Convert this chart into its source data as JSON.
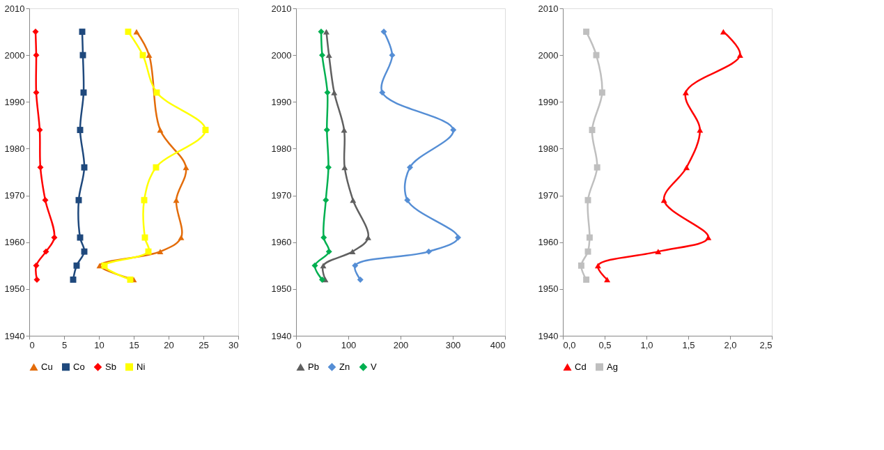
{
  "chart_data": [
    {
      "type": "line",
      "xlim": [
        0,
        30
      ],
      "xticks": [
        0,
        5,
        10,
        15,
        20,
        25,
        30
      ],
      "ylim": [
        1940,
        2010
      ],
      "yticks": [
        1940,
        1950,
        1960,
        1970,
        1980,
        1990,
        2000,
        2010
      ],
      "grid": false,
      "legend": "bottom",
      "series": [
        {
          "name": "Cu",
          "color": "#e36c0a",
          "marker": "triangle",
          "x": [
            15.4,
            17.2,
            null,
            18.8,
            22.5,
            21.1,
            21.8,
            18.8,
            10.1,
            15.0
          ],
          "values": [
            2005,
            2000,
            null,
            1984,
            1976,
            1969,
            1961,
            1958,
            1955,
            1952
          ]
        },
        {
          "name": "Co",
          "color": "#1f497d",
          "marker": "square",
          "x": [
            7.6,
            7.7,
            7.8,
            7.3,
            7.9,
            7.1,
            7.3,
            7.9,
            6.8,
            6.3
          ],
          "values": [
            2005,
            2000,
            1992,
            1984,
            1976,
            1969,
            1961,
            1958,
            1955,
            1952
          ]
        },
        {
          "name": "Sb",
          "color": "#ff0000",
          "marker": "diamond",
          "x": [
            0.9,
            1.0,
            1.0,
            1.5,
            1.6,
            2.3,
            3.6,
            2.4,
            1.0,
            1.1
          ],
          "values": [
            2005,
            2000,
            1992,
            1984,
            1976,
            1969,
            1961,
            1958,
            1955,
            1952
          ]
        },
        {
          "name": "Ni",
          "color": "#ffff00",
          "marker": "square",
          "x": [
            14.2,
            16.3,
            18.3,
            25.3,
            18.2,
            16.5,
            16.6,
            17.1,
            10.8,
            14.5
          ],
          "values": [
            2005,
            2000,
            1992,
            1984,
            1976,
            1969,
            1961,
            1958,
            1955,
            1952
          ]
        }
      ]
    },
    {
      "type": "line",
      "xlim": [
        0,
        400
      ],
      "xticks": [
        0,
        100,
        200,
        300,
        400
      ],
      "ylim": [
        1940,
        2010
      ],
      "yticks": [
        1940,
        1950,
        1960,
        1970,
        1980,
        1990,
        2000,
        2010
      ],
      "grid": false,
      "legend": "bottom",
      "series": [
        {
          "name": "Pb",
          "color": "#606060",
          "marker": "triangle",
          "x": [
            58,
            63,
            73,
            92,
            93,
            109,
            138,
            108,
            52,
            56
          ],
          "values": [
            2005,
            2000,
            1992,
            1984,
            1976,
            1969,
            1961,
            1958,
            1955,
            1952
          ]
        },
        {
          "name": "Zn",
          "color": "#558ed5",
          "marker": "diamond",
          "x": [
            168,
            184,
            165,
            301,
            218,
            213,
            310,
            254,
            113,
            123
          ],
          "values": [
            2005,
            2000,
            1992,
            1984,
            1976,
            1969,
            1961,
            1958,
            1955,
            1952
          ]
        },
        {
          "name": "V",
          "color": "#00b050",
          "marker": "diamond",
          "x": [
            48,
            50,
            60,
            59,
            62,
            57,
            53,
            63,
            36,
            50
          ],
          "values": [
            2005,
            2000,
            1992,
            1984,
            1976,
            1969,
            1961,
            1958,
            1955,
            1952
          ]
        }
      ]
    },
    {
      "type": "line",
      "xlim": [
        0,
        2.5
      ],
      "xticks": [
        {
          "value": 0,
          "label": "0,0"
        },
        {
          "value": 0.5,
          "label": "0,5"
        },
        {
          "value": 1.0,
          "label": "1,0"
        },
        {
          "value": 1.5,
          "label": "1,5"
        },
        {
          "value": 2.0,
          "label": "2,0"
        },
        {
          "value": 2.5,
          "label": "2,5"
        }
      ],
      "ylim": [
        1940,
        2010
      ],
      "yticks": [
        1940,
        1950,
        1960,
        1970,
        1980,
        1990,
        2000,
        2010
      ],
      "grid": false,
      "legend": "bottom",
      "series": [
        {
          "name": "Cd",
          "color": "#ff0000",
          "marker": "triangle",
          "x": [
            1.92,
            2.12,
            1.47,
            1.64,
            1.48,
            1.21,
            1.74,
            1.14,
            0.42,
            0.53
          ],
          "values": [
            2005,
            2000,
            1992,
            1984,
            1976,
            1969,
            1961,
            1958,
            1955,
            1952
          ]
        },
        {
          "name": "Ag",
          "color": "#bfbfbf",
          "marker": "square",
          "x": [
            0.28,
            0.4,
            0.47,
            0.35,
            0.41,
            0.3,
            0.32,
            0.3,
            0.22,
            0.28
          ],
          "values": [
            2005,
            2000,
            1992,
            1984,
            1976,
            1969,
            1961,
            1958,
            1955,
            1952
          ]
        }
      ]
    }
  ]
}
